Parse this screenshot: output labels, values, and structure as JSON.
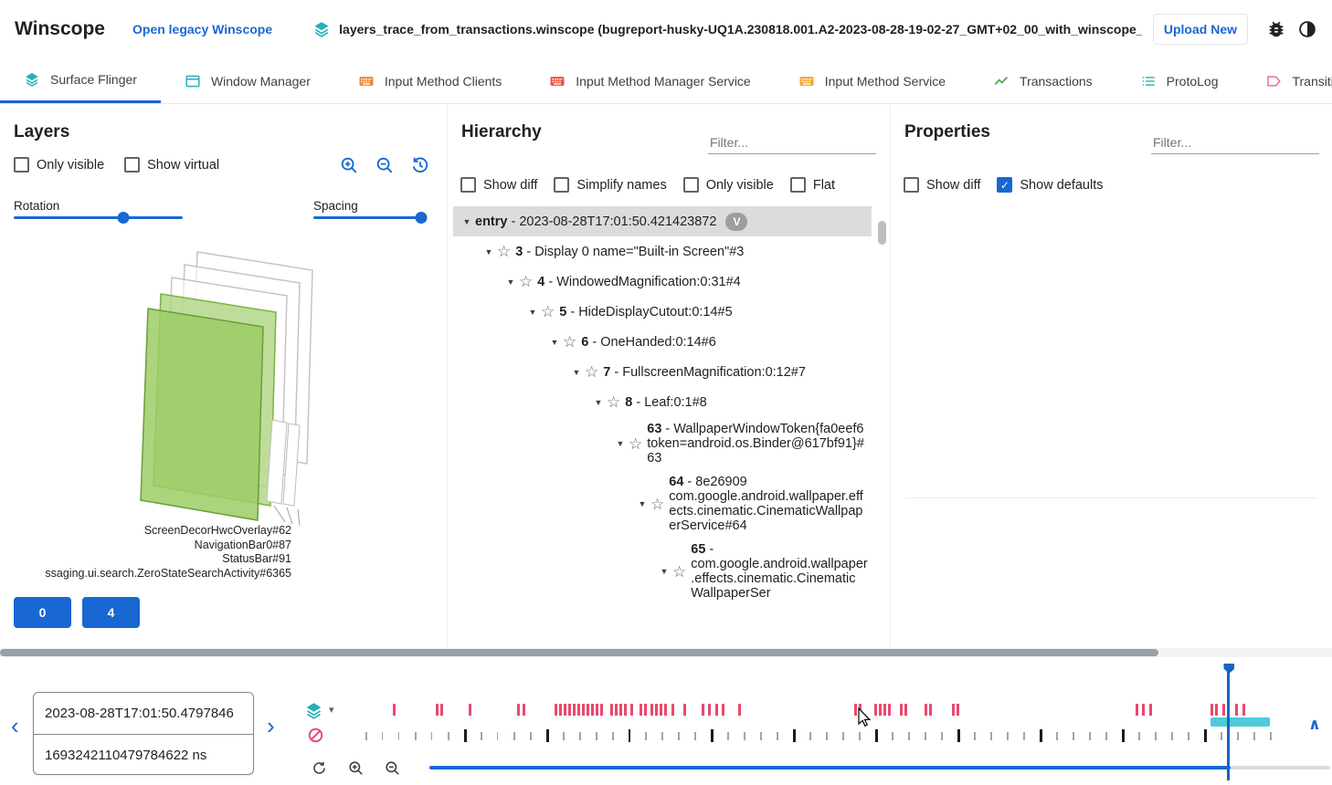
{
  "colors": {
    "accent_blue": "#1967d2",
    "teal": "#26b0bd",
    "pink": "#e84a6e",
    "selection_teal": "#4ecbd9",
    "layer_green": "#9ccc65"
  },
  "icons": {
    "check": "✓",
    "expander": "▼",
    "star": "☆",
    "prev": "‹",
    "next": "›",
    "collapse": "∧",
    "trace_caret": "▾"
  },
  "header": {
    "app_title": "Winscope",
    "legacy_link": "Open legacy Winscope",
    "file_name": "layers_trace_from_transactions.winscope (bugreport-husky-UQ1A.230818.001.A2-2023-08-28-19-02-27_GMT+02_00_with_winscope_REDACTED.zip)",
    "upload_button": "Upload New"
  },
  "tabs": [
    {
      "label": "Surface Flinger",
      "icon": "layers-icon",
      "glyph": "layers",
      "color": "#26b0bd",
      "active": true
    },
    {
      "label": "Window Manager",
      "icon": "window-icon",
      "glyph": "window",
      "color": "#26b0bd",
      "active": false
    },
    {
      "label": "Input Method Clients",
      "icon": "keyboard-icon",
      "glyph": "keyboard",
      "color": "#ef8733",
      "active": false
    },
    {
      "label": "Input Method Manager Service",
      "icon": "keyboard-icon",
      "glyph": "keyboard",
      "color": "#e85343",
      "active": false
    },
    {
      "label": "Input Method Service",
      "icon": "keyboard-icon",
      "glyph": "keyboard",
      "color": "#f0a732",
      "active": false
    },
    {
      "label": "Transactions",
      "icon": "chart-icon",
      "glyph": "chart",
      "color": "#53a653",
      "active": false
    },
    {
      "label": "ProtoLog",
      "icon": "list-icon",
      "glyph": "list",
      "color": "#3cb8b0",
      "active": false
    },
    {
      "label": "Transitions",
      "icon": "tag-icon",
      "glyph": "tag",
      "color": "#e5719d",
      "active": false
    }
  ],
  "layers_panel": {
    "title": "Layers",
    "checkboxes": [
      {
        "label": "Only visible",
        "checked": false
      },
      {
        "label": "Show virtual",
        "checked": false
      }
    ],
    "rotation_label": "Rotation",
    "spacing_label": "Spacing",
    "rotation_pct": 65,
    "spacing_pct": 97,
    "layer_labels": [
      "ScreenDecorHwcOverlay#62",
      "NavigationBar0#87",
      "StatusBar#91",
      "ssaging.ui.search.ZeroStateSearchActivity#6365"
    ],
    "display_buttons": [
      "0",
      "4"
    ]
  },
  "hierarchy_panel": {
    "title": "Hierarchy",
    "filter_placeholder": "Filter...",
    "checkboxes": [
      {
        "label": "Show diff",
        "checked": false
      },
      {
        "label": "Simplify names",
        "checked": false
      },
      {
        "label": "Only visible",
        "checked": false
      },
      {
        "label": "Flat",
        "checked": false
      }
    ],
    "tree": [
      {
        "indent": 0,
        "prefix": "entry",
        "label": "- 2023-08-28T17:01:50.421423872",
        "star": false,
        "chip": "V",
        "selected": true
      },
      {
        "indent": 1,
        "prefix": "3",
        "label": "- Display 0 name=\"Built-in Screen\"#3",
        "star": true
      },
      {
        "indent": 2,
        "prefix": "4",
        "label": "- WindowedMagnification:0:31#4",
        "star": true
      },
      {
        "indent": 3,
        "prefix": "5",
        "label": "- HideDisplayCutout:0:14#5",
        "star": true
      },
      {
        "indent": 4,
        "prefix": "6",
        "label": "- OneHanded:0:14#6",
        "star": true
      },
      {
        "indent": 5,
        "prefix": "7",
        "label": "- FullscreenMagnification:0:12#7",
        "star": true
      },
      {
        "indent": 6,
        "prefix": "8",
        "label": "- Leaf:0:1#8",
        "star": true
      },
      {
        "indent": 7,
        "prefix": "63",
        "label": "- WallpaperWindowToken{fa0eef6 token=android.os.Binder@617bf91}#63",
        "star": true
      },
      {
        "indent": 8,
        "prefix": "64",
        "label": "- 8e26909 com.google.android.wallpaper.effects.cinematic.CinematicWallpaperService#64",
        "star": true
      },
      {
        "indent": 9,
        "prefix": "65",
        "label": "- com.google.android.wallpaper.effects.cinematic.CinematicWallpaperSer",
        "star": true
      }
    ]
  },
  "properties_panel": {
    "title": "Properties",
    "filter_placeholder": "Filter...",
    "checkboxes": [
      {
        "label": "Show diff",
        "checked": false
      },
      {
        "label": "Show defaults",
        "checked": true
      }
    ]
  },
  "timeline": {
    "timestamp_human": "2023-08-28T17:01:50.4797846",
    "timestamp_ns": "1693242110479784622 ns",
    "cursor_pct": 95.4,
    "selection_start_pct": 93.4,
    "selection_width_pct": 6.6,
    "zoom_fill_pct": 88.9,
    "tick_count": 56,
    "bold_tick_indices": [
      6,
      11,
      16,
      21,
      26,
      31,
      36,
      41,
      46,
      51
    ],
    "pink_marks_pct": [
      3.0,
      7.8,
      8.3,
      11.4,
      16.8,
      17.4,
      20.9,
      21.4,
      21.9,
      22.4,
      22.9,
      23.4,
      23.9,
      24.4,
      24.9,
      25.5,
      26.0,
      27.1,
      27.6,
      28.1,
      28.6,
      29.3,
      30.3,
      30.8,
      31.5,
      32.0,
      32.5,
      33.0,
      33.8,
      35.2,
      37.2,
      37.9,
      38.7,
      39.4,
      41.2,
      54.0,
      54.5,
      56.3,
      56.8,
      57.3,
      57.8,
      59.1,
      59.6,
      61.8,
      62.3,
      64.8,
      65.4,
      85.2,
      85.9,
      86.7,
      93.4,
      93.9,
      94.7,
      96.2,
      97.0
    ]
  }
}
